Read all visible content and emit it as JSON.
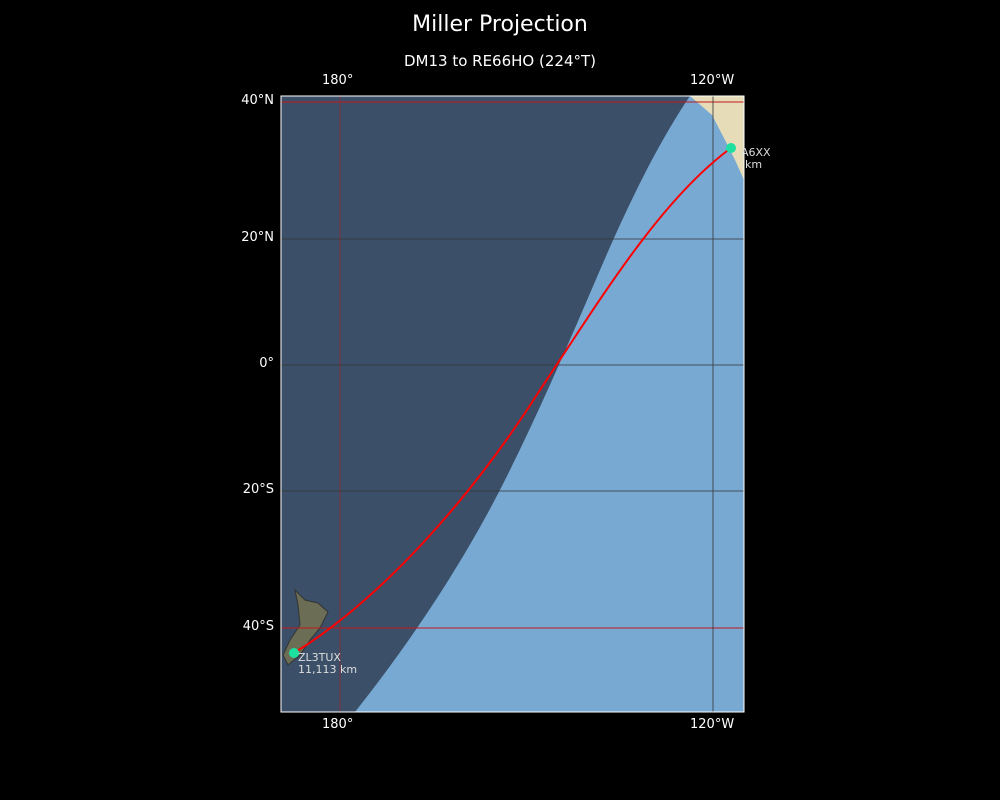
{
  "title": "Miller Projection",
  "subtitle": "DM13 to RE66HO (224°T)",
  "lon_ticks_top": [
    "180°",
    "120°W"
  ],
  "lon_ticks_bottom": [
    "180°",
    "120°W"
  ],
  "lat_ticks": [
    "40°N",
    "20°N",
    "0°",
    "20°S",
    "40°S"
  ],
  "stations": [
    {
      "callsign": "A6XX",
      "distance": "km",
      "color": "#1de0a0"
    },
    {
      "callsign": "ZL3TUX",
      "distance": "11,113 km",
      "color": "#1de0a0"
    }
  ],
  "colors": {
    "path": "#ff0000",
    "night_overlay": "#2b3a4f",
    "ocean": "#78a9d3"
  }
}
